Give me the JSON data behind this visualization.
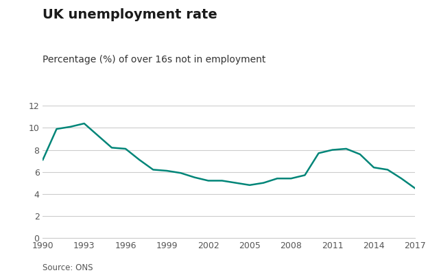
{
  "title": "UK unemployment rate",
  "subtitle": "Percentage (%) of over 16s not in employment",
  "source": "Source: ONS",
  "line_color": "#008578",
  "background_color": "#ffffff",
  "years": [
    1990,
    1991,
    1992,
    1993,
    1994,
    1995,
    1996,
    1997,
    1998,
    1999,
    2000,
    2001,
    2002,
    2003,
    2004,
    2005,
    2006,
    2007,
    2008,
    2009,
    2010,
    2011,
    2012,
    2013,
    2014,
    2015,
    2016,
    2017
  ],
  "values": [
    7.1,
    9.9,
    10.1,
    10.4,
    9.3,
    8.2,
    8.1,
    7.1,
    6.2,
    6.1,
    5.9,
    5.5,
    5.2,
    5.2,
    5.0,
    4.8,
    5.0,
    5.4,
    5.4,
    5.7,
    7.7,
    8.0,
    8.1,
    7.6,
    6.4,
    6.2,
    5.4,
    4.5
  ],
  "xlim": [
    1990,
    2017
  ],
  "ylim": [
    0,
    12
  ],
  "xticks": [
    1990,
    1993,
    1996,
    1999,
    2002,
    2005,
    2008,
    2011,
    2014,
    2017
  ],
  "yticks": [
    0,
    2,
    4,
    6,
    8,
    10,
    12
  ],
  "line_width": 1.8,
  "title_fontsize": 14,
  "subtitle_fontsize": 10,
  "tick_fontsize": 9,
  "source_fontsize": 8.5,
  "grid_color": "#cccccc",
  "text_color_title": "#1a1a1a",
  "text_color_sub": "#333333",
  "text_color_source": "#555555"
}
